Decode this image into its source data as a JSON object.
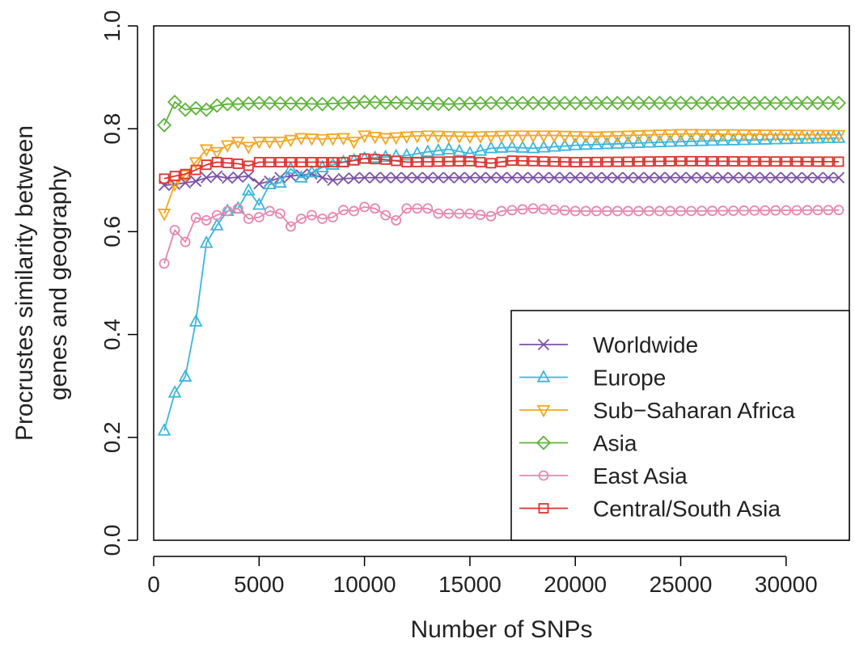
{
  "chart_data": {
    "type": "line",
    "title": "",
    "xlabel": "Number of SNPs",
    "ylabel_lines": [
      "Procrustes similarity between",
      "genes and geography"
    ],
    "xlim": [
      0,
      33000
    ],
    "ylim": [
      0,
      1
    ],
    "x_ticks": [
      0,
      5000,
      10000,
      15000,
      20000,
      25000,
      30000
    ],
    "y_ticks": [
      "0.0",
      "0.2",
      "0.4",
      "0.6",
      "0.8",
      "1.0"
    ],
    "grid": false,
    "legend_position": "bottom-right",
    "series": [
      {
        "name": "Worldwide",
        "color": "#7b52a6",
        "marker": "x",
        "anchors": [
          [
            500,
            0.69
          ],
          [
            1000,
            0.692
          ],
          [
            1500,
            0.695
          ],
          [
            2000,
            0.698
          ],
          [
            2500,
            0.705
          ],
          [
            3000,
            0.708
          ],
          [
            3500,
            0.704
          ],
          [
            4000,
            0.706
          ],
          [
            4500,
            0.708
          ],
          [
            5000,
            0.693
          ],
          [
            5500,
            0.698
          ],
          [
            6000,
            0.705
          ],
          [
            6500,
            0.708
          ],
          [
            7000,
            0.71
          ],
          [
            7500,
            0.712
          ],
          [
            8000,
            0.705
          ],
          [
            8500,
            0.7
          ],
          [
            9000,
            0.703
          ],
          [
            10000,
            0.705
          ],
          [
            13000,
            0.705
          ],
          [
            32500,
            0.705
          ]
        ]
      },
      {
        "name": "Europe",
        "color": "#3bb6dc",
        "marker": "triangle-up",
        "anchors": [
          [
            500,
            0.213
          ],
          [
            1000,
            0.287
          ],
          [
            1500,
            0.318
          ],
          [
            2000,
            0.425
          ],
          [
            2500,
            0.578
          ],
          [
            3000,
            0.612
          ],
          [
            3500,
            0.64
          ],
          [
            4000,
            0.645
          ],
          [
            4500,
            0.68
          ],
          [
            5000,
            0.652
          ],
          [
            5500,
            0.692
          ],
          [
            6000,
            0.695
          ],
          [
            6500,
            0.722
          ],
          [
            7000,
            0.705
          ],
          [
            7500,
            0.715
          ],
          [
            8000,
            0.725
          ],
          [
            9000,
            0.735
          ],
          [
            10000,
            0.742
          ],
          [
            11000,
            0.745
          ],
          [
            12000,
            0.748
          ],
          [
            13000,
            0.755
          ],
          [
            14000,
            0.76
          ],
          [
            15000,
            0.752
          ],
          [
            16000,
            0.762
          ],
          [
            17000,
            0.764
          ],
          [
            18000,
            0.762
          ],
          [
            20000,
            0.768
          ],
          [
            25000,
            0.775
          ],
          [
            32500,
            0.782
          ]
        ]
      },
      {
        "name": "Sub−Saharan Africa",
        "color": "#f5a623",
        "marker": "triangle-down",
        "anchors": [
          [
            500,
            0.635
          ],
          [
            1000,
            0.692
          ],
          [
            1500,
            0.71
          ],
          [
            2000,
            0.735
          ],
          [
            2500,
            0.76
          ],
          [
            3000,
            0.755
          ],
          [
            3500,
            0.768
          ],
          [
            4000,
            0.775
          ],
          [
            4500,
            0.765
          ],
          [
            5000,
            0.775
          ],
          [
            6000,
            0.775
          ],
          [
            7000,
            0.782
          ],
          [
            8000,
            0.78
          ],
          [
            9000,
            0.782
          ],
          [
            9500,
            0.775
          ],
          [
            10000,
            0.787
          ],
          [
            11000,
            0.782
          ],
          [
            12000,
            0.785
          ],
          [
            13000,
            0.787
          ],
          [
            15000,
            0.785
          ],
          [
            17000,
            0.787
          ],
          [
            19000,
            0.787
          ],
          [
            21000,
            0.785
          ],
          [
            25000,
            0.79
          ],
          [
            32500,
            0.788
          ]
        ]
      },
      {
        "name": "Asia",
        "color": "#5cb338",
        "marker": "diamond",
        "anchors": [
          [
            500,
            0.807
          ],
          [
            1000,
            0.852
          ],
          [
            1500,
            0.837
          ],
          [
            2000,
            0.84
          ],
          [
            2500,
            0.837
          ],
          [
            3000,
            0.845
          ],
          [
            3500,
            0.848
          ],
          [
            4000,
            0.848
          ],
          [
            5000,
            0.85
          ],
          [
            8000,
            0.848
          ],
          [
            10000,
            0.852
          ],
          [
            12000,
            0.85
          ],
          [
            14000,
            0.848
          ],
          [
            16000,
            0.85
          ],
          [
            20000,
            0.85
          ],
          [
            32500,
            0.85
          ]
        ]
      },
      {
        "name": "East Asia",
        "color": "#e887b0",
        "marker": "circle",
        "anchors": [
          [
            500,
            0.538
          ],
          [
            1000,
            0.603
          ],
          [
            1500,
            0.58
          ],
          [
            2000,
            0.627
          ],
          [
            2500,
            0.622
          ],
          [
            3000,
            0.632
          ],
          [
            3500,
            0.64
          ],
          [
            4000,
            0.645
          ],
          [
            4500,
            0.625
          ],
          [
            5000,
            0.628
          ],
          [
            5500,
            0.64
          ],
          [
            6000,
            0.635
          ],
          [
            6500,
            0.61
          ],
          [
            7000,
            0.625
          ],
          [
            7500,
            0.632
          ],
          [
            8000,
            0.625
          ],
          [
            8500,
            0.628
          ],
          [
            9000,
            0.642
          ],
          [
            9500,
            0.64
          ],
          [
            10000,
            0.648
          ],
          [
            10500,
            0.645
          ],
          [
            11000,
            0.632
          ],
          [
            11500,
            0.622
          ],
          [
            12000,
            0.645
          ],
          [
            13000,
            0.645
          ],
          [
            13500,
            0.635
          ],
          [
            15000,
            0.635
          ],
          [
            16000,
            0.63
          ],
          [
            16500,
            0.64
          ],
          [
            18000,
            0.645
          ],
          [
            20000,
            0.64
          ],
          [
            25000,
            0.64
          ],
          [
            32500,
            0.642
          ]
        ]
      },
      {
        "name": "Central/South Asia",
        "color": "#e0312c",
        "marker": "square",
        "anchors": [
          [
            500,
            0.703
          ],
          [
            1000,
            0.708
          ],
          [
            1500,
            0.712
          ],
          [
            2000,
            0.72
          ],
          [
            2500,
            0.73
          ],
          [
            3000,
            0.735
          ],
          [
            4000,
            0.732
          ],
          [
            4500,
            0.728
          ],
          [
            5000,
            0.735
          ],
          [
            7000,
            0.735
          ],
          [
            9000,
            0.735
          ],
          [
            10000,
            0.742
          ],
          [
            11000,
            0.74
          ],
          [
            12000,
            0.735
          ],
          [
            15000,
            0.737
          ],
          [
            16000,
            0.733
          ],
          [
            17000,
            0.738
          ],
          [
            20000,
            0.735
          ],
          [
            25000,
            0.737
          ],
          [
            32500,
            0.736
          ]
        ]
      }
    ]
  }
}
